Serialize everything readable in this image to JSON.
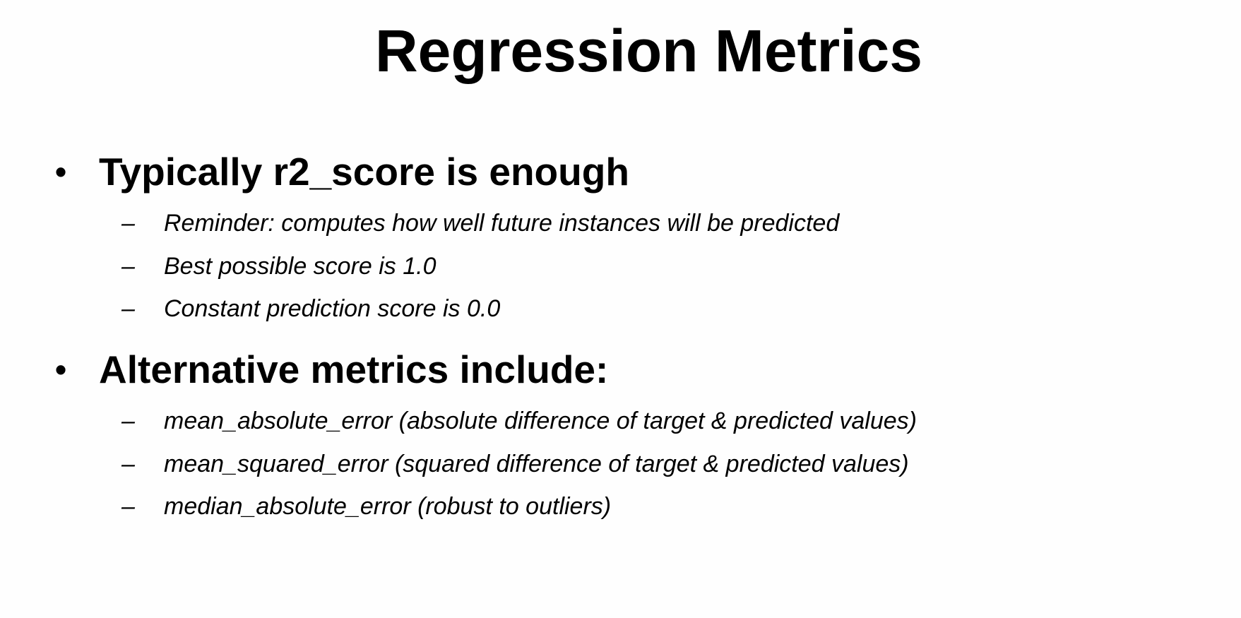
{
  "slide": {
    "title": "Regression Metrics",
    "bullets": [
      {
        "marker": "•",
        "text": "Typically r2_score is enough",
        "subitems": [
          {
            "marker": "–",
            "text": "Reminder: computes how well future instances will be predicted"
          },
          {
            "marker": "–",
            "text": "Best possible score is 1.0"
          },
          {
            "marker": "–",
            "text": "Constant prediction score is 0.0"
          }
        ]
      },
      {
        "marker": "•",
        "text": "Alternative metrics include:",
        "subitems": [
          {
            "marker": "–",
            "text": "mean_absolute_error  (absolute difference of target & predicted values)"
          },
          {
            "marker": "–",
            "text": "mean_squared_error  (squared difference of target & predicted values)"
          },
          {
            "marker": "–",
            "text": "median_absolute_error  (robust to outliers)"
          }
        ]
      }
    ]
  }
}
